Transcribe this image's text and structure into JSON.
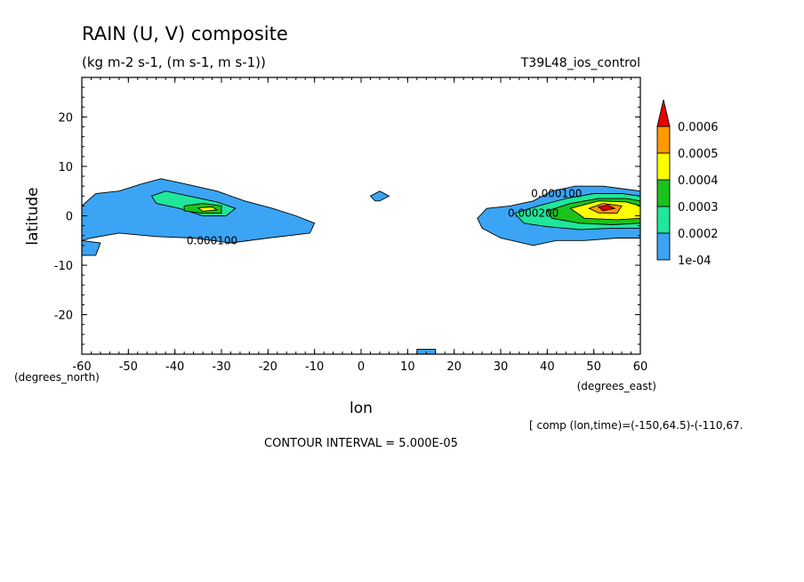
{
  "chart_data": {
    "type": "contour",
    "title": "RAIN (U, V) composite",
    "subtitle": "(kg m-2 s-1, (m s-1, m s-1))",
    "run_label": "T39L48_ios_control",
    "xlabel": "lon",
    "ylabel": "latitude",
    "x_unit_note": "(degrees_east)",
    "y_unit_note": "(degrees_north)",
    "xlim": [
      -60,
      60
    ],
    "ylim": [
      -28,
      28
    ],
    "x_ticks": [
      -60,
      -50,
      -40,
      -30,
      -20,
      -10,
      0,
      10,
      20,
      30,
      40,
      50,
      60
    ],
    "y_ticks": [
      -20,
      -10,
      0,
      10,
      20
    ],
    "contour_interval_label": "CONTOUR INTERVAL = 5.000E-05",
    "footnote": "[ comp (lon,time)=(-150,64.5)-(-110,67.",
    "contour_labels": [
      {
        "text": "0.000100",
        "lon": -32,
        "lat": -5
      },
      {
        "text": "0.000100",
        "lon": 42,
        "lat": 4.5
      },
      {
        "text": "0.000200",
        "lon": 37,
        "lat": 0.5
      }
    ],
    "colorbar": {
      "levels": [
        "1e-04",
        "0.0002",
        "0.0003",
        "0.0004",
        "0.0005",
        "0.0006"
      ],
      "colors": [
        "#3ba4f4",
        "#1fe69a",
        "#1cc21c",
        "#ffff00",
        "#ff9900",
        "#e60000"
      ]
    },
    "filled_regions": [
      {
        "level": "1e-04",
        "points": [
          [
            -60,
            2
          ],
          [
            -57,
            4.5
          ],
          [
            -52,
            5
          ],
          [
            -47,
            6.5
          ],
          [
            -43,
            7.5
          ],
          [
            -38,
            6.5
          ],
          [
            -31,
            5
          ],
          [
            -25,
            3
          ],
          [
            -19,
            1.5
          ],
          [
            -14,
            0
          ],
          [
            -10,
            -1.5
          ],
          [
            -11,
            -3.5
          ],
          [
            -20,
            -4.5
          ],
          [
            -28,
            -5.5
          ],
          [
            -36,
            -4.5
          ],
          [
            -44,
            -4.2
          ],
          [
            -52,
            -3.5
          ],
          [
            -58,
            -4.5
          ],
          [
            -60,
            -5
          ]
        ]
      },
      {
        "level": "1e-04",
        "points": [
          [
            -60,
            -5
          ],
          [
            -56,
            -5.5
          ],
          [
            -57,
            -8
          ],
          [
            -60,
            -8
          ]
        ]
      },
      {
        "level": "1e-04",
        "points": [
          [
            2,
            4
          ],
          [
            4,
            5
          ],
          [
            6,
            4
          ],
          [
            4,
            3
          ],
          [
            3,
            3
          ]
        ]
      },
      {
        "level": "1e-04",
        "points": [
          [
            12,
            -28
          ],
          [
            12,
            -27
          ],
          [
            16,
            -27
          ],
          [
            16,
            -28
          ]
        ]
      },
      {
        "level": "1e-04",
        "points": [
          [
            27,
            1.5
          ],
          [
            32,
            2
          ],
          [
            37,
            3
          ],
          [
            41,
            5
          ],
          [
            46,
            6
          ],
          [
            52,
            6
          ],
          [
            56,
            5.5
          ],
          [
            60,
            5
          ],
          [
            60,
            -4.5
          ],
          [
            55,
            -4.5
          ],
          [
            48,
            -5
          ],
          [
            42,
            -5
          ],
          [
            37,
            -6
          ],
          [
            30,
            -4.5
          ],
          [
            26,
            -2.5
          ],
          [
            25,
            -0.5
          ]
        ]
      },
      {
        "level": "0.0002",
        "points": [
          [
            33,
            0.5
          ],
          [
            38,
            2
          ],
          [
            44,
            3.5
          ],
          [
            50,
            4.5
          ],
          [
            56,
            4.5
          ],
          [
            60,
            4
          ],
          [
            60,
            -2.5
          ],
          [
            54,
            -2.5
          ],
          [
            47,
            -2.8
          ],
          [
            40,
            -2.2
          ],
          [
            35,
            -1.5
          ]
        ]
      },
      {
        "level": "0.0002",
        "points": [
          [
            -45,
            4
          ],
          [
            -42,
            5
          ],
          [
            -37,
            4
          ],
          [
            -31,
            2.8
          ],
          [
            -27,
            1.5
          ],
          [
            -29,
            0
          ],
          [
            -34,
            0
          ],
          [
            -39,
            1.5
          ],
          [
            -44,
            2.5
          ]
        ]
      },
      {
        "level": "0.0003",
        "points": [
          [
            40,
            1
          ],
          [
            45,
            2.5
          ],
          [
            51,
            3.5
          ],
          [
            57,
            3.5
          ],
          [
            60,
            3
          ],
          [
            60,
            -1.5
          ],
          [
            54,
            -1.8
          ],
          [
            47,
            -1.5
          ],
          [
            41,
            -0.5
          ]
        ]
      },
      {
        "level": "0.0003",
        "points": [
          [
            -38,
            2
          ],
          [
            -34,
            2.5
          ],
          [
            -30,
            2
          ],
          [
            -30,
            0.5
          ],
          [
            -34,
            0.5
          ],
          [
            -38,
            1
          ]
        ]
      },
      {
        "level": "0.0004",
        "points": [
          [
            45,
            1.5
          ],
          [
            51,
            3
          ],
          [
            57,
            2.8
          ],
          [
            60,
            2
          ],
          [
            60,
            -0.5
          ],
          [
            55,
            -0.8
          ],
          [
            48,
            -0.5
          ]
        ]
      },
      {
        "level": "0.0004",
        "points": [
          [
            -35,
            1.6
          ],
          [
            -32,
            1.8
          ],
          [
            -31,
            1.2
          ],
          [
            -34,
            0.9
          ]
        ]
      },
      {
        "level": "0.0005",
        "points": [
          [
            49,
            1.5
          ],
          [
            52,
            2.5
          ],
          [
            56,
            2
          ],
          [
            55,
            0.5
          ],
          [
            51,
            0.6
          ]
        ]
      },
      {
        "level": "0.0006",
        "points": [
          [
            51,
            1.8
          ],
          [
            53,
            2.2
          ],
          [
            54.5,
            1.5
          ],
          [
            52,
            1
          ]
        ]
      }
    ]
  }
}
